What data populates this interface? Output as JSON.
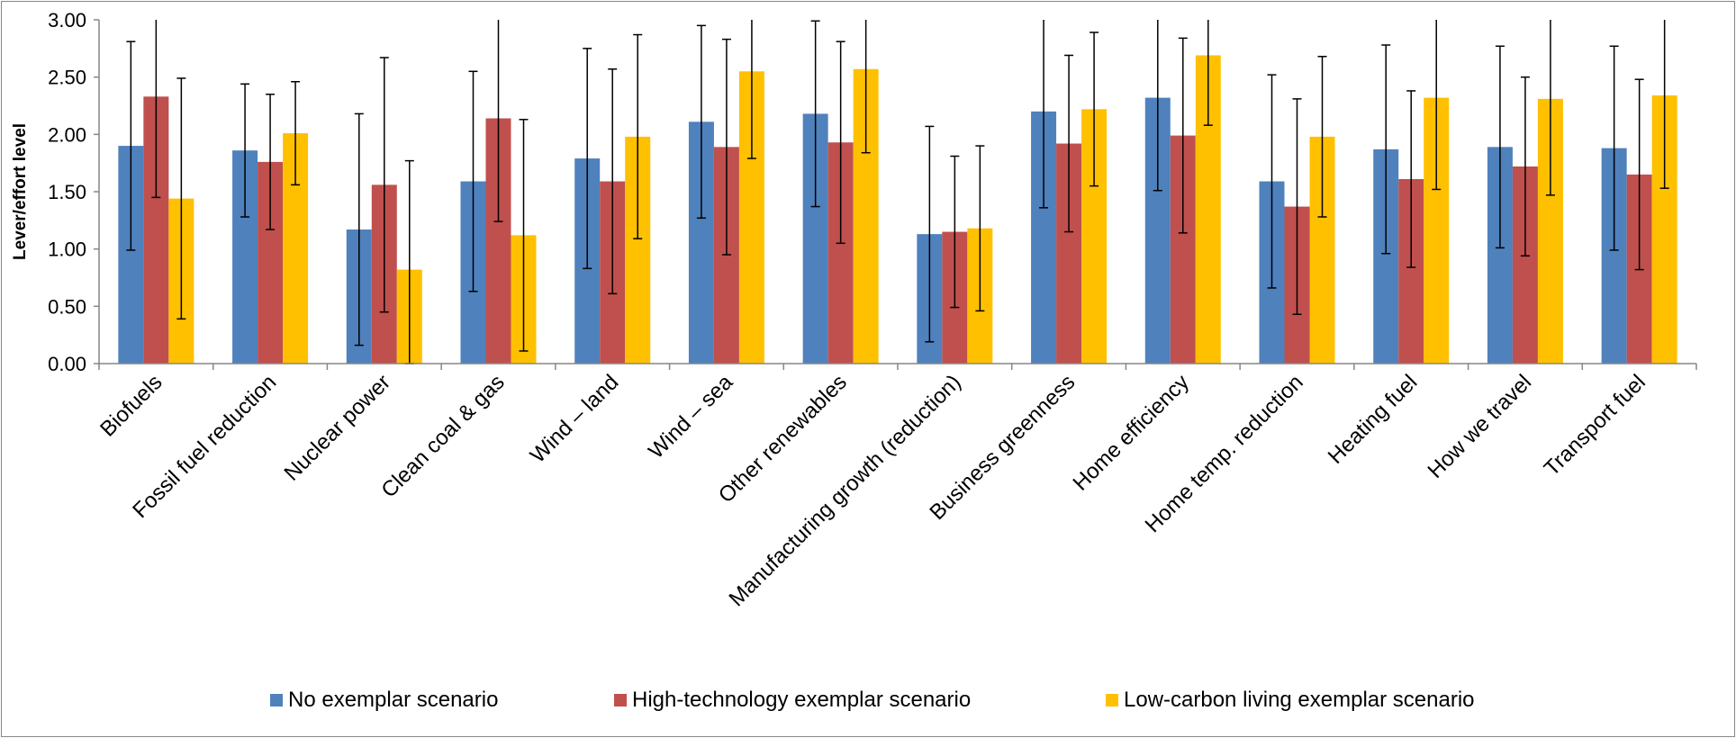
{
  "chart_data": {
    "type": "bar",
    "title": "",
    "xlabel": "",
    "ylabel": "Lever/effort level",
    "ylim": [
      0,
      3
    ],
    "y_ticks": [
      "0.00",
      "0.50",
      "1.00",
      "1.50",
      "2.00",
      "2.50",
      "3.00"
    ],
    "grid": false,
    "legend_position": "bottom",
    "error_bars": true,
    "categories": [
      "Biofuels",
      "Fossil fuel reduction",
      "Nuclear power",
      "Clean coal & gas",
      "Wind – land",
      "Wind – sea",
      "Other renewables",
      "Manufacturing growth (reduction)",
      "Business greenness",
      "Home efficiency",
      "Home temp. reduction",
      "Heating fuel",
      "How we travel",
      "Transport fuel"
    ],
    "series": [
      {
        "name": "No exemplar scenario",
        "color": "#4F81BD",
        "values": [
          1.9,
          1.86,
          1.17,
          1.59,
          1.79,
          2.11,
          2.18,
          1.13,
          2.2,
          2.32,
          1.59,
          1.87,
          1.89,
          1.88
        ],
        "error_low": [
          0.99,
          1.28,
          0.16,
          0.63,
          0.83,
          1.27,
          1.37,
          0.19,
          1.36,
          1.51,
          0.66,
          0.96,
          1.01,
          0.99
        ],
        "error_high": [
          2.81,
          2.44,
          2.18,
          2.55,
          2.75,
          2.95,
          2.99,
          2.07,
          3.04,
          3.13,
          2.52,
          2.78,
          2.77,
          2.77
        ]
      },
      {
        "name": "High-technology exemplar scenario",
        "color": "#C0504D",
        "values": [
          2.33,
          1.76,
          1.56,
          2.14,
          1.59,
          1.89,
          1.93,
          1.15,
          1.92,
          1.99,
          1.37,
          1.61,
          1.72,
          1.65
        ],
        "error_low": [
          1.45,
          1.17,
          0.45,
          1.24,
          0.61,
          0.95,
          1.05,
          0.49,
          1.15,
          1.14,
          0.43,
          0.84,
          0.94,
          0.82
        ],
        "error_high": [
          3.21,
          2.35,
          2.67,
          3.04,
          2.57,
          2.83,
          2.81,
          1.81,
          2.69,
          2.84,
          2.31,
          2.38,
          2.5,
          2.48
        ]
      },
      {
        "name": "Low-carbon living exemplar scenario",
        "color": "#FFC000",
        "values": [
          1.44,
          2.01,
          0.82,
          1.12,
          1.98,
          2.55,
          2.57,
          1.18,
          2.22,
          2.69,
          1.98,
          2.32,
          2.31,
          2.34
        ],
        "error_low": [
          0.39,
          1.56,
          0.0,
          0.11,
          1.09,
          1.79,
          1.84,
          0.46,
          1.55,
          2.08,
          1.28,
          1.52,
          1.47,
          1.53
        ],
        "error_high": [
          2.49,
          2.46,
          1.77,
          2.13,
          2.87,
          3.31,
          3.3,
          1.9,
          2.89,
          3.3,
          2.68,
          3.12,
          3.15,
          3.15
        ]
      }
    ]
  }
}
